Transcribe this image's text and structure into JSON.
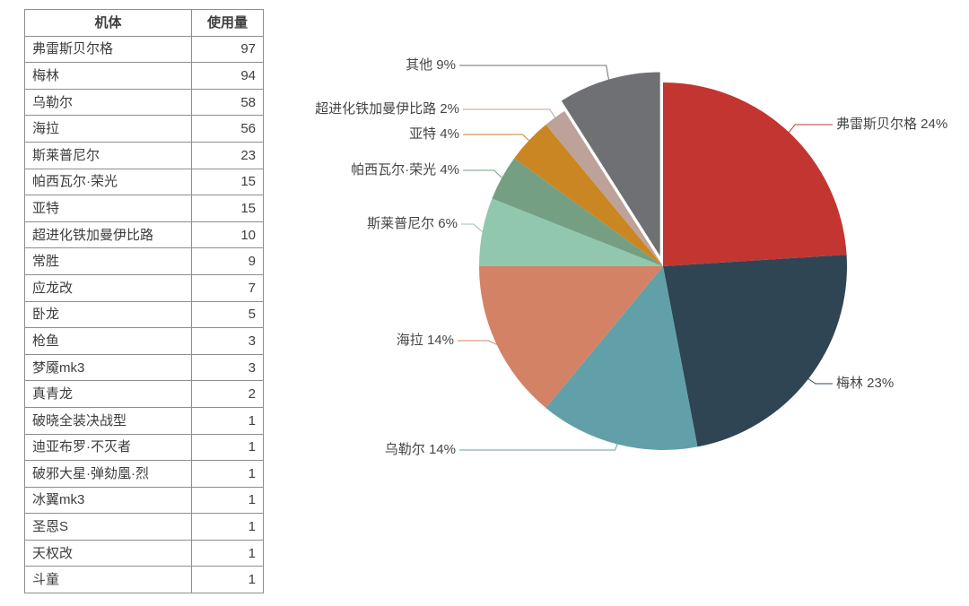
{
  "table": {
    "headers": [
      "机体",
      "使用量"
    ],
    "rows": [
      [
        "弗雷斯贝尔格",
        97
      ],
      [
        "梅林",
        94
      ],
      [
        "乌勒尔",
        58
      ],
      [
        "海拉",
        56
      ],
      [
        "斯莱普尼尔",
        23
      ],
      [
        "帕西瓦尔·荣光",
        15
      ],
      [
        "亚特",
        15
      ],
      [
        "超进化铁加曼伊比路",
        10
      ],
      [
        "常胜",
        9
      ],
      [
        "应龙改",
        7
      ],
      [
        "卧龙",
        5
      ],
      [
        "枪鱼",
        3
      ],
      [
        "梦魇mk3",
        3
      ],
      [
        "真青龙",
        2
      ],
      [
        "破晓全装决战型",
        1
      ],
      [
        "迪亚布罗·不灭者",
        1
      ],
      [
        "破邪大星·弹劾凰·烈",
        1
      ],
      [
        "冰翼mk3",
        1
      ],
      [
        "圣恩S",
        1
      ],
      [
        "天权改",
        1
      ],
      [
        "斗童",
        1
      ]
    ]
  },
  "chart_data": {
    "type": "pie",
    "title": "",
    "legend": "none",
    "start_angle_deg": 0,
    "direction": "clockwise",
    "series": [
      {
        "name": "弗雷斯贝尔格",
        "percent": 24,
        "label": "弗雷斯贝尔格 24%",
        "color": "#c23531",
        "exploded": false
      },
      {
        "name": "梅林",
        "percent": 23,
        "label": "梅林 23%",
        "color": "#2f4554",
        "exploded": false
      },
      {
        "name": "乌勒尔",
        "percent": 14,
        "label": "乌勒尔 14%",
        "color": "#61a0a8",
        "exploded": false
      },
      {
        "name": "海拉",
        "percent": 14,
        "label": "海拉 14%",
        "color": "#d48265",
        "exploded": false
      },
      {
        "name": "斯莱普尼尔",
        "percent": 6,
        "label": "斯莱普尼尔 6%",
        "color": "#91c7ae",
        "exploded": false
      },
      {
        "name": "帕西瓦尔·荣光",
        "percent": 4,
        "label": "帕西瓦尔·荣光 4%",
        "color": "#749f83",
        "exploded": false
      },
      {
        "name": "亚特",
        "percent": 4,
        "label": "亚特 4%",
        "color": "#ca8622",
        "exploded": false
      },
      {
        "name": "超进化铁加曼伊比路",
        "percent": 2,
        "label": "超进化铁加曼伊比路 2%",
        "color": "#bda29a",
        "exploded": false
      },
      {
        "name": "其他",
        "percent": 9,
        "label": "其他 9%",
        "color": "#6e7074",
        "exploded": true
      }
    ]
  }
}
